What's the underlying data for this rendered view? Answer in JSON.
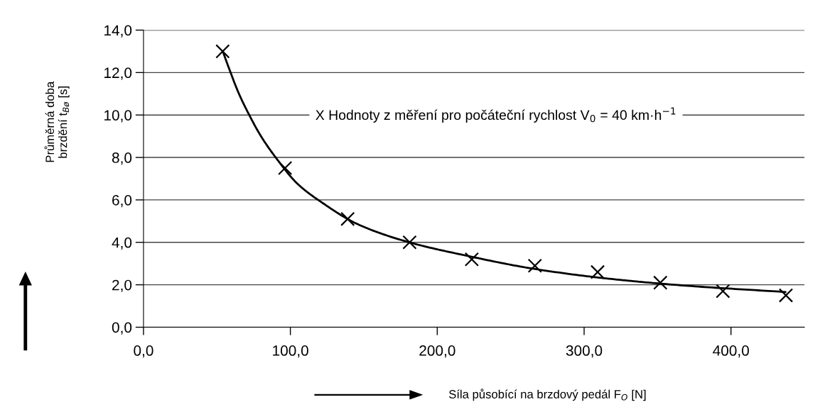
{
  "chart_data": {
    "type": "scatter",
    "xlabel": "Síla působící na brzdový pedál F$_{O}$ [N]",
    "ylabel": "Průměrná doba\nbrzdění t$_{Bø}$ [s]",
    "annotations": [
      "X Hodnoty z měření pro počáteční rychlost V$_{0}$ = 40 km·h$^{−1}$"
    ],
    "series": [
      {
        "color": "#000000",
        "marker": "cross",
        "x": [
          53.9,
          96.4,
          139.0,
          181.2,
          223.5,
          266.5,
          309.2,
          351.9,
          394.5,
          437.4
        ],
        "values": [
          13.0,
          7.5,
          5.1,
          4.0,
          3.2,
          2.9,
          2.6,
          2.1,
          1.7,
          1.5
        ]
      },
      {
        "type": "line",
        "color": "#000000",
        "marker": "none",
        "line_style": "solid",
        "x": [
          54,
          58.2,
          65,
          72,
          80,
          90,
          105,
          121,
          146,
          181,
          218,
          266,
          315,
          371,
          437
        ],
        "values": [
          13.0,
          12.2,
          11.0,
          10.0,
          9.0,
          8.0,
          6.75,
          5.9,
          4.85,
          4.0,
          3.4,
          2.75,
          2.3,
          1.95,
          1.66
        ]
      }
    ],
    "xlim": [
      0,
      450
    ],
    "xticks": [
      {
        "value": 0,
        "label": "0,0"
      },
      {
        "value": 100,
        "label": "100,0"
      },
      {
        "value": 200,
        "label": "200,0"
      },
      {
        "value": 300,
        "label": "300,0"
      },
      {
        "value": 400,
        "label": "400,0"
      }
    ],
    "ylim": [
      0,
      14
    ],
    "yticks": [
      {
        "value": 0,
        "label": "0,0"
      },
      {
        "value": 2,
        "label": "2,0"
      },
      {
        "value": 4,
        "label": "4,0"
      },
      {
        "value": 6,
        "label": "6,0"
      },
      {
        "value": 8,
        "label": "8,0"
      },
      {
        "value": 10,
        "label": "10,0"
      },
      {
        "value": 12,
        "label": "12,0"
      },
      {
        "value": 14,
        "label": "14,0"
      }
    ],
    "grid": "y",
    "legend": false
  }
}
